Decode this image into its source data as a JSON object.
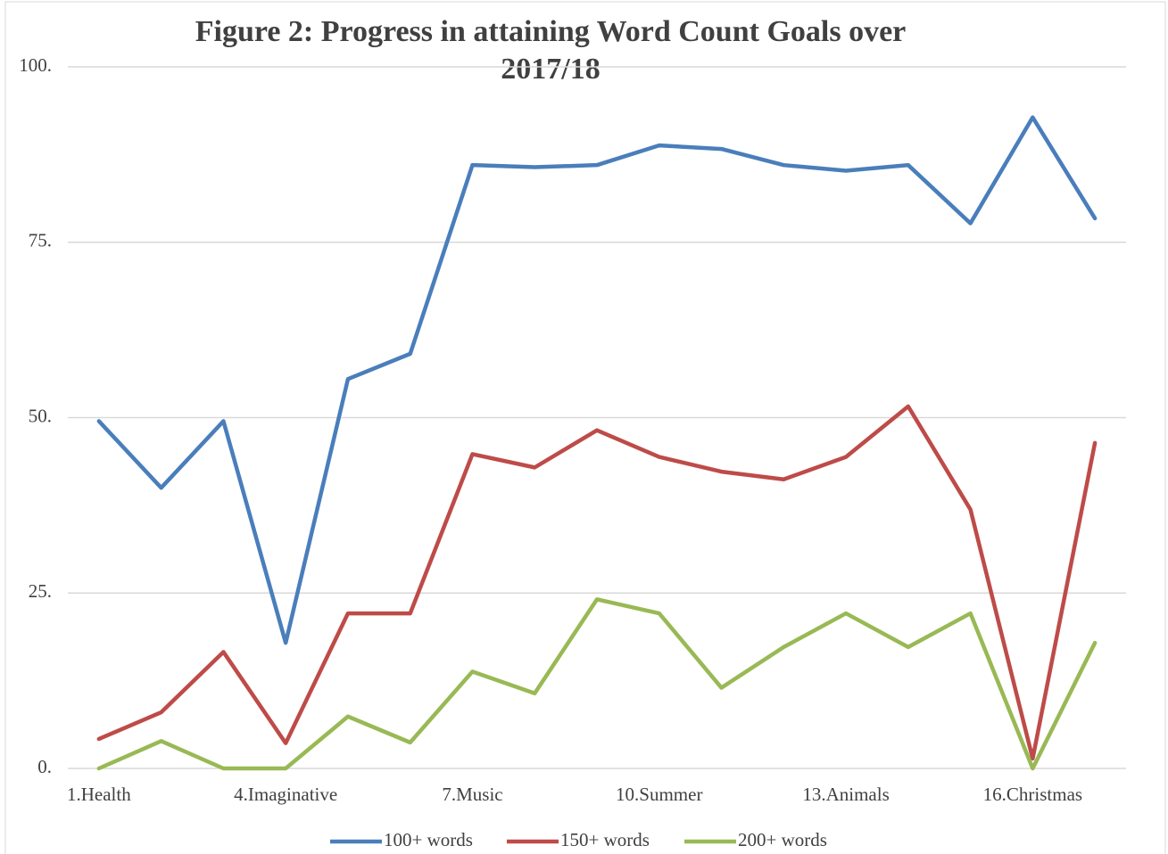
{
  "chart_data": {
    "type": "line",
    "title": [
      "Figure 2: Progress in attaining Word Count Goals over",
      "2017/18"
    ],
    "categories": [
      "1.Health",
      null,
      null,
      "4.Imaginative",
      null,
      null,
      "7.Music",
      null,
      null,
      "10.Summer",
      null,
      null,
      "13.Animals",
      null,
      null,
      "16.Christmas",
      null
    ],
    "series": [
      {
        "name": "100+ words",
        "color": "#4a7ebb",
        "values": [
          49.5,
          40.0,
          49.5,
          17.9,
          55.5,
          59.1,
          86.0,
          85.7,
          86.0,
          88.8,
          88.3,
          86.0,
          85.2,
          86.0,
          77.7,
          92.8,
          78.4
        ]
      },
      {
        "name": "150+ words",
        "color": "#be4b48",
        "values": [
          4.2,
          8.0,
          16.6,
          3.6,
          22.1,
          22.1,
          44.8,
          42.9,
          48.2,
          44.4,
          42.3,
          41.2,
          44.4,
          51.6,
          36.9,
          1.4,
          46.4
        ]
      },
      {
        "name": "200+ words",
        "color": "#98b954",
        "values": [
          0,
          3.9,
          0,
          0,
          7.4,
          3.7,
          13.8,
          10.7,
          24.1,
          22.1,
          11.5,
          17.3,
          22.1,
          17.3,
          22.1,
          0,
          17.9
        ]
      }
    ],
    "ylim": [
      0,
      100
    ],
    "yticks": [
      {
        "value": 0,
        "label": "0."
      },
      {
        "value": 25,
        "label": "25."
      },
      {
        "value": 50,
        "label": "50."
      },
      {
        "value": 75,
        "label": "75."
      },
      {
        "value": 100,
        "label": "100."
      }
    ],
    "grid": true,
    "legend": "bottom"
  }
}
